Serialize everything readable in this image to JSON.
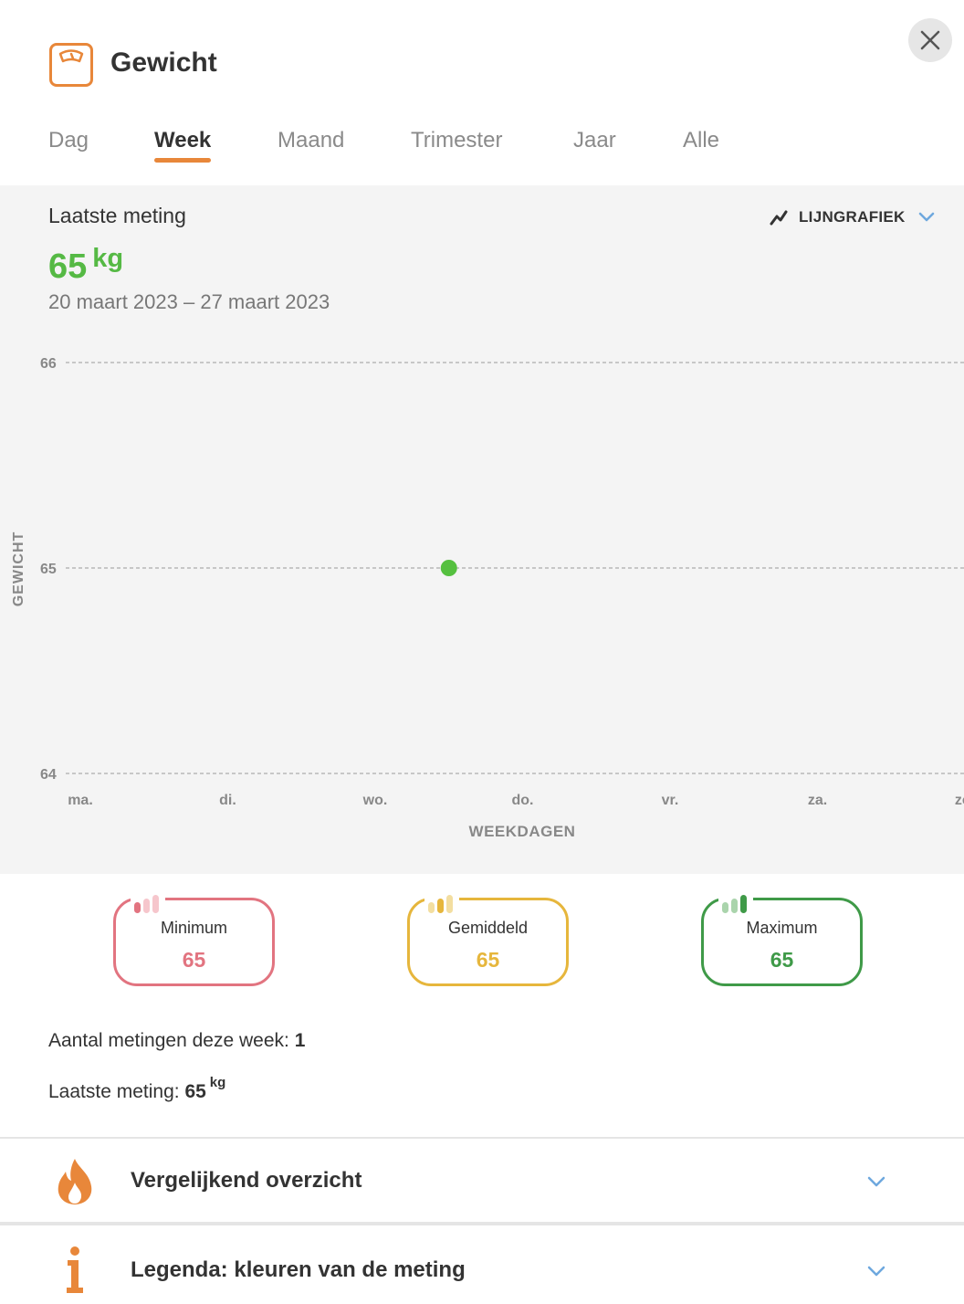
{
  "header": {
    "title": "Gewicht",
    "icon": "scale-icon",
    "close_icon": "close-icon"
  },
  "tabs": [
    {
      "label": "Dag",
      "active": false
    },
    {
      "label": "Week",
      "active": true
    },
    {
      "label": "Maand",
      "active": false
    },
    {
      "label": "Trimester",
      "active": false
    },
    {
      "label": "Jaar",
      "active": false
    },
    {
      "label": "Alle",
      "active": false
    }
  ],
  "summary": {
    "latest_label": "Laatste meting",
    "latest_value": "65",
    "latest_unit": "kg",
    "date_range": "20 maart 2023 – 27 maart 2023",
    "chart_type_label": "LIJNGRAFIEK",
    "chart_type_icon": "line-chart-icon"
  },
  "chart_data": {
    "type": "line",
    "ylabel": "GEWICHT",
    "xlabel": "WEEKDAGEN",
    "x_ticks": [
      "ma.",
      "di.",
      "wo.",
      "do.",
      "vr.",
      "za.",
      "zo."
    ],
    "y_ticks": [
      "66",
      "65",
      "64"
    ],
    "ylim": [
      64,
      66
    ],
    "grid": true,
    "series": [
      {
        "points": [
          {
            "x": 2.5,
            "y": 65
          }
        ],
        "color": "#55c03f"
      }
    ]
  },
  "stats": [
    {
      "label": "Minimum",
      "value": "65",
      "color": "#e27480",
      "bar_light": "#f6c6cc"
    },
    {
      "label": "Gemiddeld",
      "value": "65",
      "color": "#e6b63c",
      "bar_light": "#f3dea0"
    },
    {
      "label": "Maximum",
      "value": "65",
      "color": "#3f9a48",
      "bar_light": "#aad4ac"
    }
  ],
  "info": {
    "count_label": "Aantal metingen deze week:",
    "count_value": "1",
    "last_label": "Laatste meting:",
    "last_value": "65",
    "last_unit": "kg"
  },
  "accordions": [
    {
      "title": "Vergelijkend overzicht",
      "icon": "flame-icon"
    },
    {
      "title": "Legenda: kleuren van de meting",
      "icon": "info-icon"
    }
  ],
  "colors": {
    "accent": "#e8873a",
    "chevron": "#6ea8de",
    "latest_green": "#55b944"
  }
}
